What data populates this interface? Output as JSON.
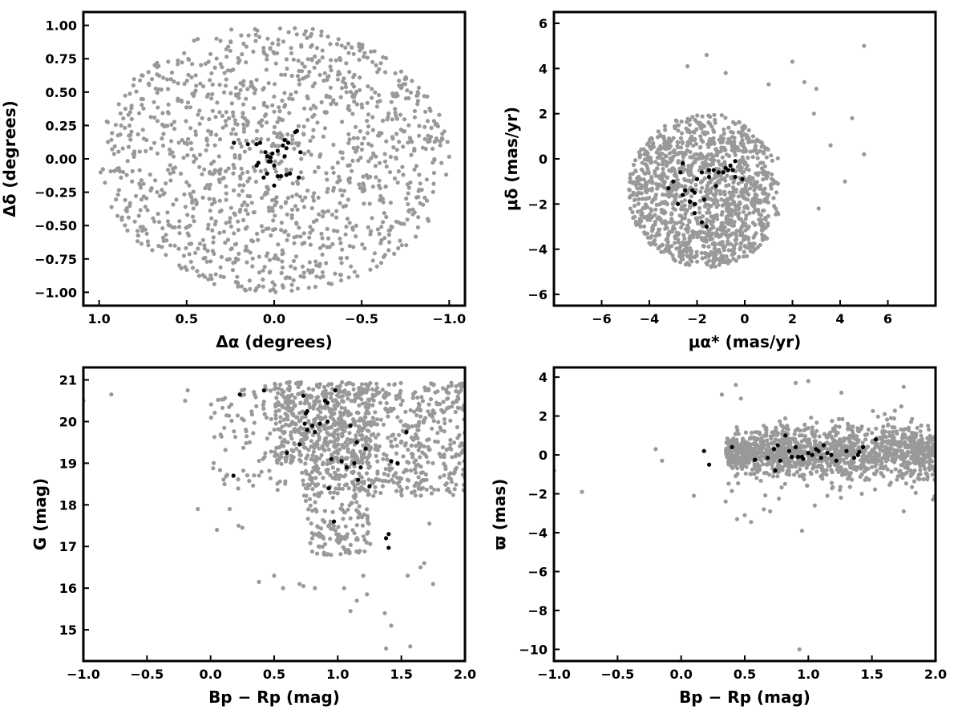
{
  "chart_data": [
    {
      "type": "scatter",
      "xlabel": "Δα (degrees)",
      "ylabel": "Δδ (degrees)",
      "xlim": [
        1.09,
        -1.09
      ],
      "ylim": [
        -1.1,
        1.1
      ],
      "xticks": [
        1.0,
        0.5,
        0.0,
        -0.5,
        -1.0
      ],
      "xtick_labels": [
        "1.0",
        "0.5",
        "0.0",
        "−0.5",
        "−1.0"
      ],
      "yticks": [
        1.0,
        0.75,
        0.5,
        0.25,
        0.0,
        -0.25,
        -0.5,
        -0.75,
        -1.0
      ],
      "ytick_labels": [
        "1.00",
        "0.75",
        "0.50",
        "0.25",
        "0.00",
        "−0.25",
        "−0.50",
        "−0.75",
        "−1.00"
      ],
      "grid": false,
      "series": [
        {
          "color": "#999999",
          "distribution": {
            "kind": "disk",
            "cx": 0.0,
            "cy": 0.0,
            "r": 1.0,
            "n": 1300
          },
          "points": []
        },
        {
          "color": "#000000",
          "points": [
            [
              0.23,
              0.12
            ],
            [
              0.15,
              0.11
            ],
            [
              0.1,
              0.11
            ],
            [
              0.08,
              0.12
            ],
            [
              0.05,
              0.05
            ],
            [
              0.04,
              0.02
            ],
            [
              0.03,
              -0.02
            ],
            [
              0.02,
              0.01
            ],
            [
              0.0,
              -0.05
            ],
            [
              -0.02,
              0.06
            ],
            [
              -0.05,
              0.1
            ],
            [
              -0.06,
              0.14
            ],
            [
              -0.07,
              0.08
            ],
            [
              -0.06,
              0.02
            ],
            [
              -0.07,
              -0.12
            ],
            [
              -0.08,
              0.12
            ],
            [
              -0.12,
              0.2
            ],
            [
              -0.13,
              0.21
            ],
            [
              -0.15,
              0.05
            ],
            [
              -0.04,
              -0.13
            ],
            [
              -0.02,
              -0.13
            ],
            [
              0.06,
              -0.14
            ],
            [
              0.1,
              -0.05
            ],
            [
              0.09,
              -0.03
            ],
            [
              0.04,
              -0.11
            ],
            [
              0.0,
              -0.2
            ],
            [
              -0.14,
              -0.14
            ],
            [
              -0.09,
              -0.11
            ],
            [
              0.02,
              -0.02
            ],
            [
              0.01,
              0.04
            ]
          ]
        }
      ]
    },
    {
      "type": "scatter",
      "xlabel": "μα* (mas/yr)",
      "ylabel": "μδ (mas/yr)",
      "xlim": [
        -8.0,
        8.0
      ],
      "ylim": [
        -6.5,
        6.5
      ],
      "xticks": [
        -6,
        -4,
        -2,
        0,
        2,
        4,
        6
      ],
      "xtick_labels": [
        "−6",
        "−4",
        "−2",
        "0",
        "2",
        "4",
        "6"
      ],
      "yticks": [
        6,
        4,
        2,
        0,
        -2,
        -4,
        -6
      ],
      "ytick_labels": [
        "6",
        "4",
        "2",
        "0",
        "−2",
        "−4",
        "−6"
      ],
      "grid": false,
      "series": [
        {
          "color": "#999999",
          "distribution": {
            "kind": "pm",
            "cx": -1.6,
            "cy": -1.4,
            "rx": 3.3,
            "ry": 3.4,
            "n": 1300
          },
          "points": [
            [
              5.0,
              5.0
            ],
            [
              2.0,
              4.3
            ],
            [
              -1.6,
              4.6
            ],
            [
              -2.4,
              4.1
            ],
            [
              4.5,
              1.8
            ],
            [
              3.1,
              -2.2
            ],
            [
              4.2,
              -1.0
            ],
            [
              2.9,
              2.0
            ],
            [
              3.6,
              0.6
            ],
            [
              5.0,
              0.2
            ],
            [
              -0.8,
              3.8
            ],
            [
              1.0,
              3.3
            ],
            [
              2.5,
              3.4
            ],
            [
              3.0,
              3.1
            ]
          ]
        },
        {
          "color": "#000000",
          "points": [
            [
              -2.6,
              -0.2
            ],
            [
              -2.7,
              -0.6
            ],
            [
              -2.5,
              -1.4
            ],
            [
              -2.6,
              -1.6
            ],
            [
              -3.0,
              -1.0
            ],
            [
              -3.2,
              -1.3
            ],
            [
              -2.2,
              -1.4
            ],
            [
              -2.3,
              -1.9
            ],
            [
              -2.1,
              -2.0
            ],
            [
              -2.1,
              -2.4
            ],
            [
              -1.8,
              -2.8
            ],
            [
              -1.6,
              -3.0
            ],
            [
              -2.1,
              -1.5
            ],
            [
              -1.8,
              -0.6
            ],
            [
              -1.5,
              -0.5
            ],
            [
              -1.3,
              -0.5
            ],
            [
              -1.2,
              -1.2
            ],
            [
              -1.5,
              -0.8
            ],
            [
              -1.1,
              -0.6
            ],
            [
              -0.9,
              -0.6
            ],
            [
              -0.8,
              -0.4
            ],
            [
              -0.6,
              -0.3
            ],
            [
              -0.7,
              -0.5
            ],
            [
              -0.5,
              -0.5
            ],
            [
              -0.4,
              -0.1
            ],
            [
              -0.4,
              -0.8
            ],
            [
              -0.1,
              -0.9
            ],
            [
              -1.7,
              -1.8
            ],
            [
              -2.0,
              -0.9
            ],
            [
              -2.8,
              -2.0
            ]
          ]
        }
      ]
    },
    {
      "type": "scatter",
      "xlabel": "Bp − Rp (mag)",
      "ylabel": "G (mag)",
      "xlim": [
        -1.0,
        2.0
      ],
      "ylim": [
        14.25,
        21.3
      ],
      "xticks": [
        -1.0,
        -0.5,
        0.0,
        0.5,
        1.0,
        1.5,
        2.0
      ],
      "xtick_labels": [
        "−1.0",
        "−0.5",
        "0.0",
        "0.5",
        "1.0",
        "1.5",
        "2.0"
      ],
      "yticks": [
        21,
        20,
        19,
        18,
        17,
        16,
        15
      ],
      "ytick_labels": [
        "21",
        "20",
        "19",
        "18",
        "17",
        "16",
        "15"
      ],
      "grid": false,
      "series": [
        {
          "color": "#999999",
          "distribution": {
            "kind": "cmd",
            "n": 1250
          },
          "points": [
            [
              -1.0,
              20.5
            ],
            [
              -0.78,
              20.65
            ],
            [
              -0.18,
              20.75
            ],
            [
              -0.2,
              20.5
            ],
            [
              -0.1,
              17.9
            ],
            [
              0.05,
              17.4
            ],
            [
              0.15,
              17.9
            ],
            [
              0.22,
              17.5
            ],
            [
              0.25,
              17.45
            ],
            [
              0.38,
              16.15
            ],
            [
              0.5,
              16.3
            ],
            [
              0.57,
              16.0
            ],
            [
              0.7,
              16.1
            ],
            [
              0.73,
              16.05
            ],
            [
              0.82,
              16.0
            ],
            [
              1.05,
              16.0
            ],
            [
              1.1,
              15.45
            ],
            [
              1.15,
              15.7
            ],
            [
              1.2,
              16.3
            ],
            [
              1.23,
              15.85
            ],
            [
              1.37,
              15.4
            ],
            [
              1.42,
              15.1
            ],
            [
              1.38,
              14.55
            ],
            [
              1.57,
              14.6
            ],
            [
              1.55,
              16.3
            ],
            [
              1.65,
              16.5
            ],
            [
              1.68,
              16.6
            ],
            [
              1.75,
              16.1
            ],
            [
              1.72,
              17.55
            ]
          ]
        },
        {
          "color": "#000000",
          "points": [
            [
              0.23,
              20.65
            ],
            [
              0.42,
              20.75
            ],
            [
              0.73,
              20.62
            ],
            [
              0.76,
              20.25
            ],
            [
              0.75,
              20.2
            ],
            [
              0.74,
              19.95
            ],
            [
              0.8,
              19.9
            ],
            [
              0.82,
              19.75
            ],
            [
              0.76,
              19.8
            ],
            [
              0.7,
              19.45
            ],
            [
              0.6,
              19.25
            ],
            [
              0.9,
              20.5
            ],
            [
              0.92,
              20.45
            ],
            [
              0.98,
              20.75
            ],
            [
              0.86,
              19.95
            ],
            [
              0.92,
              20.0
            ],
            [
              1.1,
              19.9
            ],
            [
              1.15,
              19.5
            ],
            [
              1.22,
              19.35
            ],
            [
              1.03,
              19.05
            ],
            [
              1.07,
              18.9
            ],
            [
              1.13,
              19.0
            ],
            [
              1.18,
              18.9
            ],
            [
              0.95,
              19.1
            ],
            [
              0.93,
              18.4
            ],
            [
              1.16,
              18.6
            ],
            [
              1.25,
              18.45
            ],
            [
              0.97,
              17.6
            ],
            [
              1.38,
              17.2
            ],
            [
              1.4,
              17.3
            ],
            [
              1.4,
              16.97
            ],
            [
              1.42,
              19.05
            ],
            [
              1.47,
              19.0
            ],
            [
              1.54,
              19.75
            ],
            [
              0.18,
              18.7
            ]
          ]
        }
      ]
    },
    {
      "type": "scatter",
      "xlabel": "Bp − Rp (mag)",
      "ylabel": "ϖ (mas)",
      "xlim": [
        -1.0,
        2.0
      ],
      "ylim": [
        -10.6,
        4.5
      ],
      "xticks": [
        -1.0,
        -0.5,
        0.0,
        0.5,
        1.0,
        1.5,
        2.0
      ],
      "xtick_labels": [
        "−1.0",
        "−0.5",
        "0.0",
        "0.5",
        "1.0",
        "1.5",
        "2.0"
      ],
      "yticks": [
        4,
        2,
        0,
        -2,
        -4,
        -6,
        -8,
        -10
      ],
      "ytick_labels": [
        "4",
        "2",
        "0",
        "−2",
        "−4",
        "−6",
        "−8",
        "−10"
      ],
      "grid": false,
      "series": [
        {
          "color": "#999999",
          "distribution": {
            "kind": "plx",
            "n": 1350
          },
          "points": [
            [
              -1.0,
              -0.8
            ],
            [
              -0.78,
              -1.9
            ],
            [
              -0.2,
              0.3
            ],
            [
              -0.15,
              -0.3
            ],
            [
              0.1,
              -2.1
            ],
            [
              0.32,
              3.1
            ],
            [
              0.35,
              -2.4
            ],
            [
              0.43,
              3.6
            ],
            [
              0.47,
              2.9
            ],
            [
              0.44,
              -3.3
            ],
            [
              0.5,
              -3.1
            ],
            [
              0.55,
              -3.45
            ],
            [
              0.65,
              -2.8
            ],
            [
              0.7,
              -2.9
            ],
            [
              0.9,
              3.7
            ],
            [
              1.0,
              3.8
            ],
            [
              0.95,
              -3.9
            ],
            [
              0.93,
              -10.0
            ],
            [
              1.05,
              -2.6
            ],
            [
              1.15,
              -2.1
            ],
            [
              1.26,
              3.2
            ],
            [
              1.42,
              -2.0
            ],
            [
              1.6,
              2.1
            ],
            [
              1.65,
              1.9
            ],
            [
              1.75,
              3.5
            ],
            [
              1.75,
              -2.9
            ],
            [
              1.98,
              -2.3
            ]
          ]
        },
        {
          "color": "#000000",
          "points": [
            [
              0.18,
              0.2
            ],
            [
              0.22,
              -0.5
            ],
            [
              0.4,
              0.4
            ],
            [
              0.58,
              -0.25
            ],
            [
              0.68,
              -0.15
            ],
            [
              0.73,
              0.3
            ],
            [
              0.76,
              0.5
            ],
            [
              0.74,
              -0.8
            ],
            [
              0.78,
              -0.3
            ],
            [
              0.82,
              1.0
            ],
            [
              0.85,
              0.2
            ],
            [
              0.87,
              -0.1
            ],
            [
              0.9,
              0.4
            ],
            [
              0.92,
              -0.1
            ],
            [
              0.95,
              -0.1
            ],
            [
              0.96,
              -0.2
            ],
            [
              1.0,
              0.1
            ],
            [
              1.03,
              0.0
            ],
            [
              1.06,
              0.3
            ],
            [
              1.08,
              0.2
            ],
            [
              1.1,
              -0.15
            ],
            [
              1.12,
              0.5
            ],
            [
              1.15,
              0.1
            ],
            [
              1.18,
              0.0
            ],
            [
              1.22,
              -0.3
            ],
            [
              1.3,
              0.2
            ],
            [
              1.36,
              -0.15
            ],
            [
              1.39,
              0.0
            ],
            [
              1.4,
              0.15
            ],
            [
              1.43,
              0.4
            ],
            [
              1.53,
              0.8
            ]
          ]
        }
      ]
    }
  ]
}
